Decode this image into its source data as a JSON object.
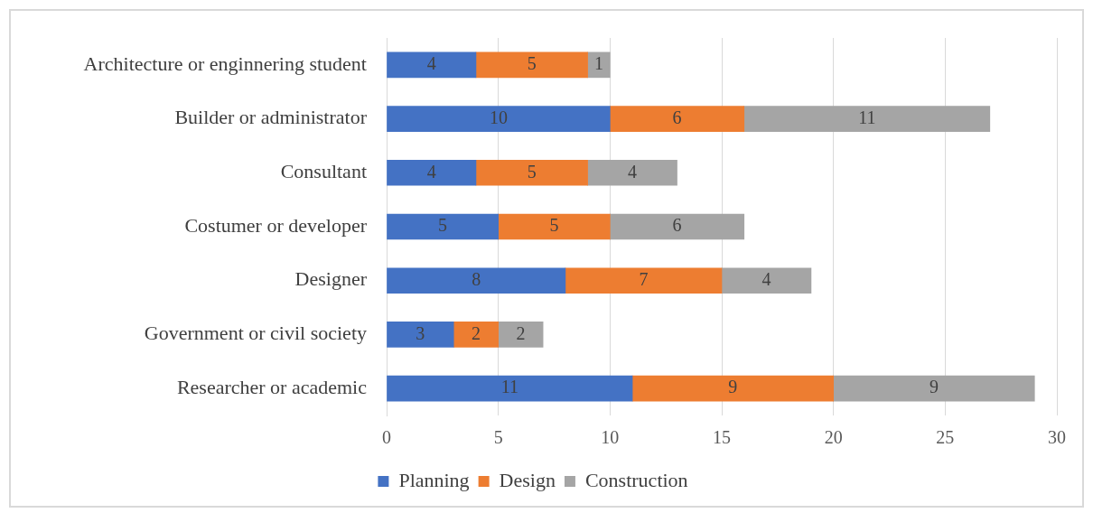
{
  "chart_data": {
    "type": "bar",
    "orientation": "horizontal",
    "stacked": true,
    "categories": [
      "Architecture or enginnering student",
      "Builder or administrator",
      "Consultant",
      "Costumer or developer",
      "Designer",
      "Government or civil society",
      "Researcher or academic"
    ],
    "series": [
      {
        "name": "Planning",
        "color": "#4472c4",
        "values": [
          4,
          10,
          4,
          5,
          8,
          3,
          11
        ]
      },
      {
        "name": "Design",
        "color": "#ed7d31",
        "values": [
          5,
          6,
          5,
          5,
          7,
          2,
          9
        ]
      },
      {
        "name": "Construction",
        "color": "#a5a5a5",
        "values": [
          1,
          11,
          4,
          6,
          4,
          2,
          9
        ]
      }
    ],
    "xlim": [
      0,
      30
    ],
    "xticks": [
      0,
      5,
      10,
      15,
      20,
      25,
      30
    ],
    "grid": "x",
    "legend": "bottom",
    "data_labels": true
  }
}
